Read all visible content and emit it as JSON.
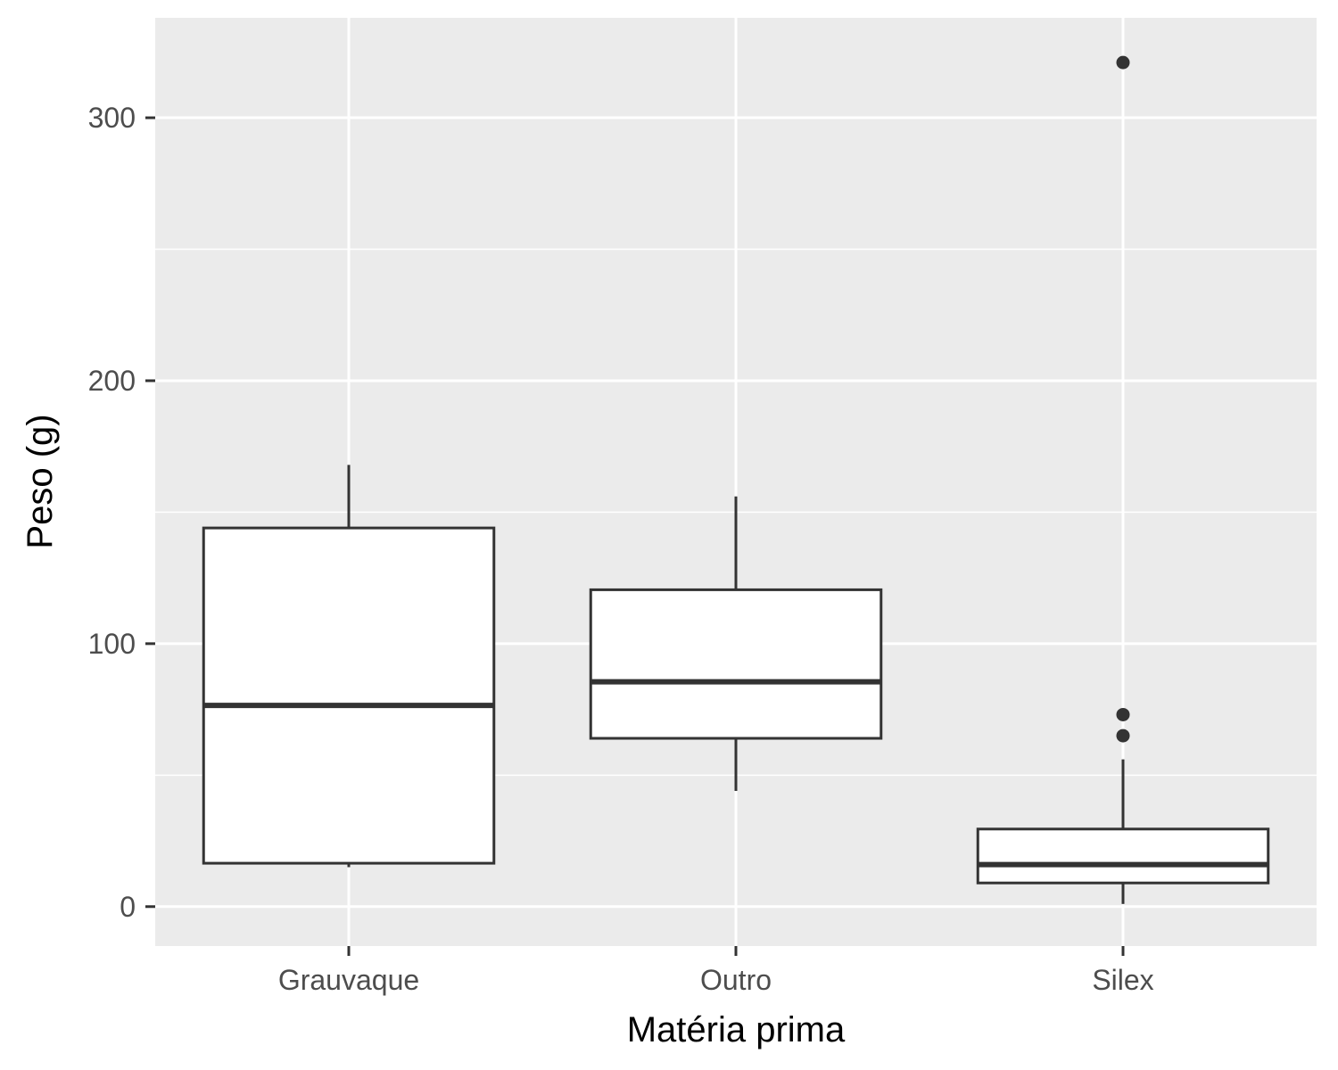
{
  "chart_data": {
    "type": "boxplot",
    "xlabel": "Matéria prima",
    "ylabel": "Peso (g)",
    "categories": [
      "Grauvaque",
      "Outro",
      "Silex"
    ],
    "ylim": [
      -15,
      338
    ],
    "yticks": [
      0,
      100,
      200,
      300
    ],
    "y_minor_ticks": [
      50,
      150,
      250
    ],
    "grid": true,
    "legend": "none",
    "boxes": [
      {
        "category": "Grauvaque",
        "whisker_low": 15,
        "q1": 16.5,
        "median": 76.5,
        "q3": 144,
        "whisker_high": 168,
        "outliers": []
      },
      {
        "category": "Outro",
        "whisker_low": 44,
        "q1": 64,
        "median": 85.5,
        "q3": 120.5,
        "whisker_high": 156,
        "outliers": []
      },
      {
        "category": "Silex",
        "whisker_low": 1,
        "q1": 9,
        "median": 16,
        "q3": 29.5,
        "whisker_high": 56,
        "outliers": [
          65,
          73,
          321
        ]
      }
    ],
    "colors": {
      "panel_background": "#ebebeb",
      "grid_line": "#ffffff",
      "box_fill": "#ffffff",
      "box_stroke": "#333333",
      "outlier": "#333333",
      "tick_mark": "#333333",
      "tick_label": "#4d4d4d",
      "axis_title": "#000000"
    }
  }
}
